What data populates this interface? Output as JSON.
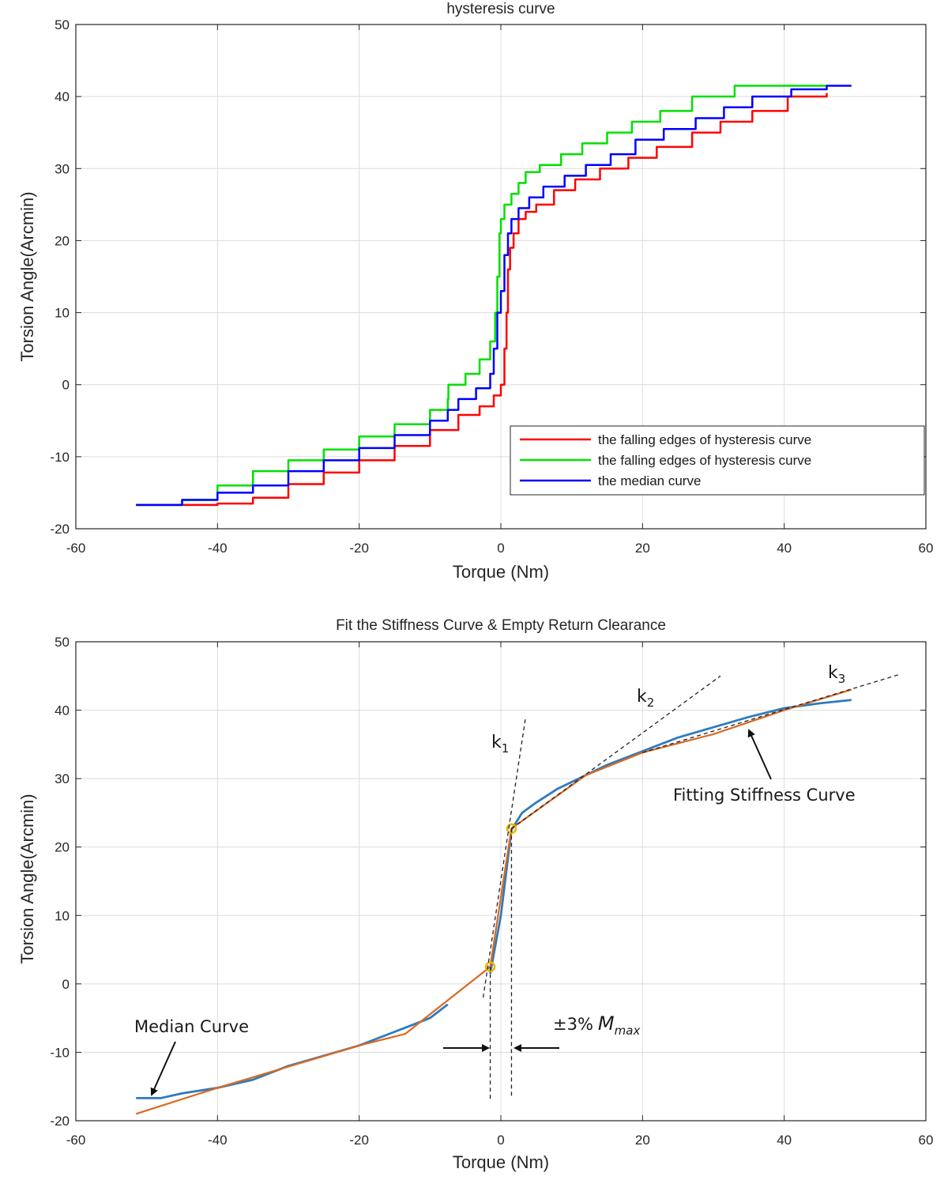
{
  "chart_data": [
    {
      "type": "line",
      "title": "hysteresis curve",
      "xlabel": "Torque (Nm)",
      "ylabel": "Torsion Angle(Arcmin)",
      "xlim": [
        -60,
        60
      ],
      "ylim": [
        -20,
        50
      ],
      "xticks": [
        "-60",
        "-40",
        "-20",
        "0",
        "20",
        "40",
        "60"
      ],
      "yticks": [
        "-20",
        "-10",
        "0",
        "10",
        "20",
        "30",
        "40",
        "50"
      ],
      "grid": true,
      "legend_position": "bottom-right",
      "series": [
        {
          "name": "the falling edges of hysteresis curve",
          "color": "#ff0000",
          "x": [
            -51.5,
            -45,
            -40,
            -35,
            -30,
            -25,
            -20,
            -15,
            -10,
            -6,
            -3,
            -1,
            0,
            0.5,
            0.8,
            1,
            1.3,
            1.8,
            2.5,
            3.5,
            5,
            7.5,
            10.5,
            14,
            18,
            22,
            27,
            31,
            35.5,
            40.5,
            46
          ],
          "y": [
            -16.7,
            -16.7,
            -16.5,
            -15.7,
            -13.8,
            -12.2,
            -10.5,
            -8.5,
            -6.3,
            -4.2,
            -3,
            -1.5,
            0,
            5,
            10,
            16,
            19,
            21,
            23,
            24,
            25,
            27,
            28.5,
            30,
            31.5,
            33,
            35,
            36.5,
            38,
            40,
            40.5
          ]
        },
        {
          "name": "the falling edges of hysteresis curve",
          "color": "#00e000",
          "x": [
            -51.5,
            -47,
            -45,
            -40,
            -35,
            -30,
            -25,
            -20,
            -15,
            -10,
            -7.5,
            -7.4,
            -5,
            -3,
            -1.5,
            -0.8,
            -0.5,
            -0.2,
            0,
            0.5,
            1.5,
            2.5,
            3.5,
            5.5,
            8.5,
            11.5,
            15,
            18.5,
            22.5,
            27,
            33,
            40,
            46
          ],
          "y": [
            -16.7,
            -16.7,
            -16,
            -14,
            -12,
            -10.5,
            -9,
            -7.2,
            -5.5,
            -3.5,
            -2,
            0,
            1.5,
            3.5,
            6,
            10,
            15,
            21,
            23,
            25,
            26.5,
            28,
            29.5,
            30.5,
            32,
            33.5,
            35,
            36.5,
            38,
            40,
            41.5,
            41.5,
            41.5
          ]
        },
        {
          "name": "the median curve",
          "color": "#0000ff",
          "x": [
            -51.5,
            -48,
            -45,
            -40,
            -35,
            -30,
            -25,
            -20,
            -15,
            -10,
            -7.5,
            -6,
            -3.5,
            -1.5,
            -1,
            -0.5,
            0,
            0.5,
            1,
            1.5,
            2.5,
            4,
            6,
            9,
            12,
            15.5,
            19,
            23,
            27.5,
            31.5,
            35.5,
            41,
            46,
            49.5
          ],
          "y": [
            -16.7,
            -16.7,
            -16,
            -15,
            -14,
            -12,
            -10.5,
            -8.8,
            -7,
            -5,
            -3.5,
            -2,
            -0.5,
            1.5,
            5,
            10,
            13,
            18,
            21,
            23,
            24.5,
            26,
            27.5,
            29,
            30.5,
            32,
            34,
            35.5,
            37,
            38.5,
            40,
            41,
            41.5,
            41.5
          ]
        }
      ]
    },
    {
      "type": "line",
      "title": "Fit the Stiffness Curve & Empty Return Clearance",
      "xlabel": "Torque (Nm)",
      "ylabel": "Torsion Angle(Arcmin)",
      "xlim": [
        -60,
        60
      ],
      "ylim": [
        -20,
        50
      ],
      "xticks": [
        "-60",
        "-40",
        "-20",
        "0",
        "20",
        "40",
        "60"
      ],
      "yticks": [
        "-20",
        "-10",
        "0",
        "10",
        "20",
        "30",
        "40",
        "50"
      ],
      "grid": true,
      "series": [
        {
          "name": "Median Curve",
          "color": "#2f7bbd",
          "x": [
            -51.5,
            -48,
            -45,
            -40,
            -35,
            -30,
            -25,
            -20,
            -15,
            -10,
            -7.5,
            -1.5,
            0,
            1.5,
            3,
            5,
            8,
            12,
            15,
            20,
            25,
            30,
            35,
            40,
            45,
            49.5
          ],
          "y": [
            -16.7,
            -16.7,
            -16,
            -15.2,
            -14,
            -12,
            -10.5,
            -9,
            -7,
            -5,
            -3,
            1.5,
            10,
            22.5,
            25,
            26.5,
            28.5,
            30.5,
            32,
            34,
            36,
            37.5,
            39,
            40.3,
            41,
            41.5
          ]
        },
        {
          "name": "Fitting Stiffness Curve",
          "color": "#d9691f",
          "x": [
            -51.5,
            -40,
            -20,
            -13.5,
            -1.5,
            1.5,
            12,
            20,
            30,
            40,
            49.5
          ],
          "y": [
            -19,
            -15.2,
            -9,
            -7.3,
            2.5,
            22.7,
            30.5,
            33.8,
            36.5,
            40,
            43
          ]
        }
      ],
      "points": [
        {
          "x": -1.5,
          "y": 2.5
        },
        {
          "x": 1.5,
          "y": 22.7
        }
      ],
      "tangent_lines": [
        {
          "name": "k1",
          "x": [
            -2.5,
            3.5
          ],
          "y": [
            -2,
            39
          ]
        },
        {
          "name": "k2",
          "x": [
            1.5,
            31
          ],
          "y": [
            22.7,
            45
          ]
        },
        {
          "name": "k3",
          "x": [
            20,
            56.5
          ],
          "y": [
            33.8,
            45.3
          ]
        }
      ],
      "vlines": [
        -1.5,
        1.5
      ],
      "annotations": {
        "k1": {
          "base": "k",
          "sub": "1"
        },
        "k2": {
          "base": "k",
          "sub": "2"
        },
        "k3": {
          "base": "k",
          "sub": "3"
        },
        "fit_label": "Fitting Stiffness  Curve",
        "median_label": "Median Curve",
        "clearance_prefix": "±3%",
        "clearance_m": "M",
        "clearance_sub": "max"
      }
    }
  ]
}
